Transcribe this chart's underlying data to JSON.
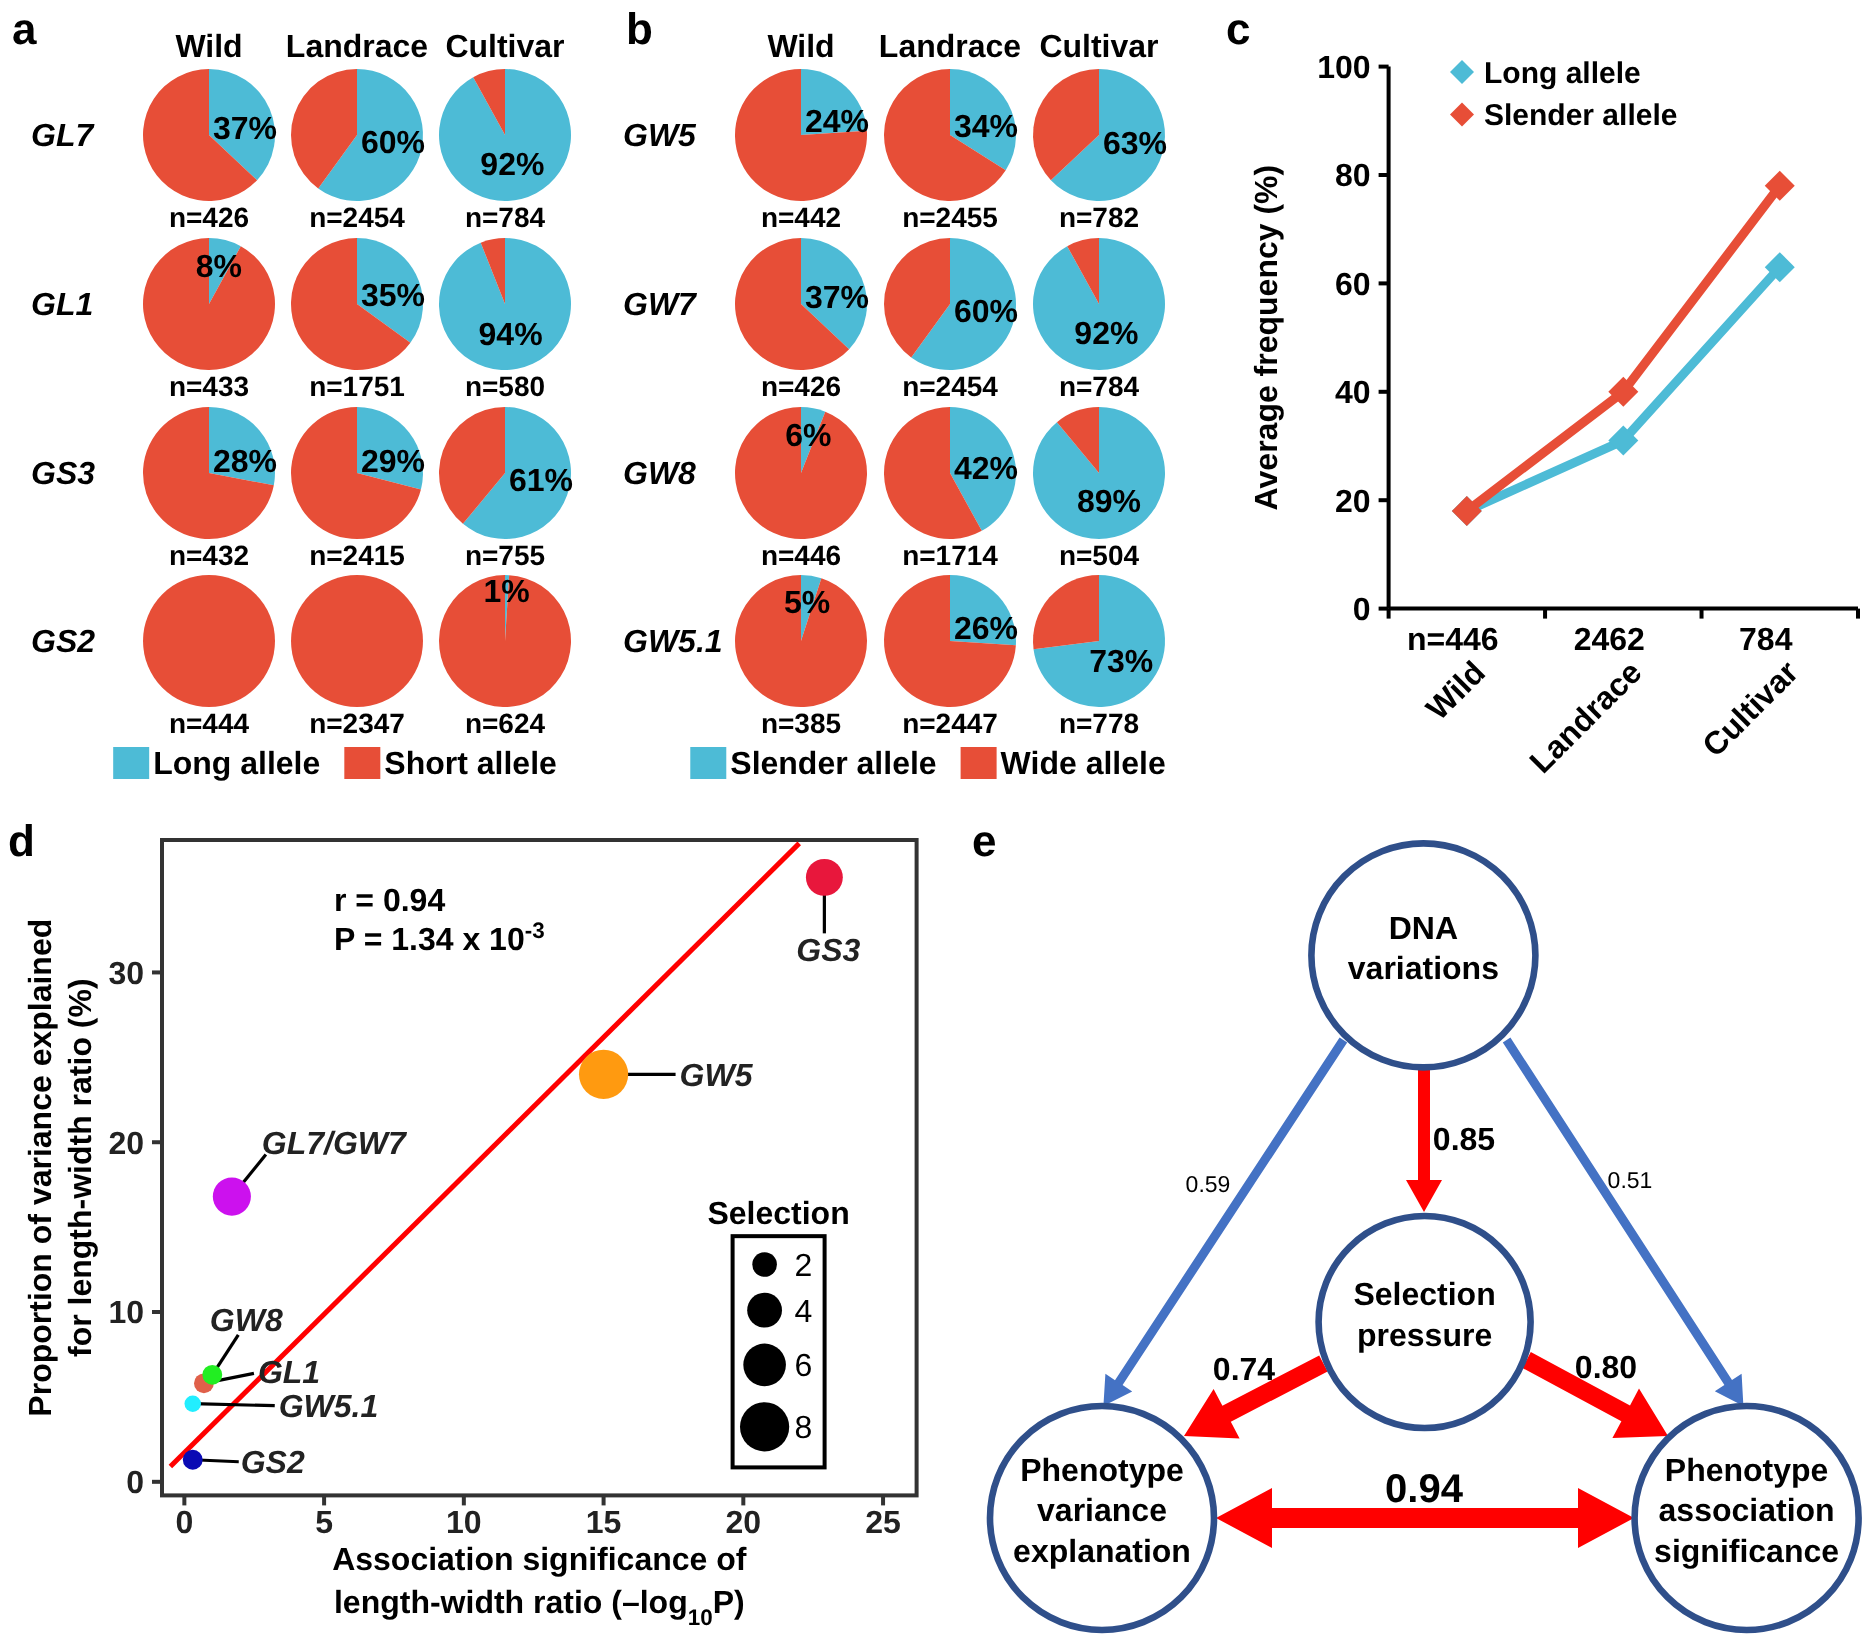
{
  "chart_data": [
    {
      "type": "pie",
      "title": "Wild",
      "ylabel": "GL7",
      "categories": [
        null,
        null
      ],
      "values": [
        37,
        63
      ],
      "colors": [
        "#4dbbd6",
        "#e74e37"
      ],
      "value_labels": [
        "37%",
        null
      ],
      "annotations": [
        "n=426",
        "a"
      ]
    },
    {
      "type": "pie",
      "title": "Landrace",
      "categories": [
        null,
        null
      ],
      "values": [
        60,
        40
      ],
      "colors": [
        "#4dbbd6",
        "#e74e37"
      ],
      "value_labels": [
        "60%",
        null
      ],
      "annotations": [
        "n=2454"
      ]
    },
    {
      "type": "pie",
      "title": "Cultivar",
      "categories": [
        null,
        null
      ],
      "values": [
        92,
        8
      ],
      "colors": [
        "#4dbbd6",
        "#e74e37"
      ],
      "value_labels": [
        "92%",
        null
      ],
      "annotations": [
        "n=784"
      ]
    },
    {
      "type": "pie",
      "ylabel": "GL1",
      "categories": [
        null,
        null
      ],
      "values": [
        8,
        92
      ],
      "colors": [
        "#4dbbd6",
        "#e74e37"
      ],
      "value_labels": [
        "8%",
        null
      ],
      "annotations": [
        "n=433"
      ]
    },
    {
      "type": "pie",
      "categories": [
        null,
        null
      ],
      "values": [
        35,
        65
      ],
      "colors": [
        "#4dbbd6",
        "#e74e37"
      ],
      "value_labels": [
        "35%",
        null
      ],
      "annotations": [
        "n=1751"
      ]
    },
    {
      "type": "pie",
      "categories": [
        null,
        null
      ],
      "values": [
        94,
        6
      ],
      "colors": [
        "#4dbbd6",
        "#e74e37"
      ],
      "value_labels": [
        "94%",
        null
      ],
      "annotations": [
        "n=580"
      ]
    },
    {
      "type": "pie",
      "ylabel": "GS3",
      "categories": [
        null,
        null
      ],
      "values": [
        28,
        72
      ],
      "colors": [
        "#4dbbd6",
        "#e74e37"
      ],
      "value_labels": [
        "28%",
        null
      ],
      "annotations": [
        "n=432"
      ]
    },
    {
      "type": "pie",
      "categories": [
        null,
        null
      ],
      "values": [
        29,
        71
      ],
      "colors": [
        "#4dbbd6",
        "#e74e37"
      ],
      "value_labels": [
        "29%",
        null
      ],
      "annotations": [
        "n=2415"
      ]
    },
    {
      "type": "pie",
      "categories": [
        null,
        null
      ],
      "values": [
        61,
        39
      ],
      "colors": [
        "#4dbbd6",
        "#e74e37"
      ],
      "value_labels": [
        "61%",
        null
      ],
      "annotations": [
        "n=755"
      ]
    },
    {
      "type": "pie",
      "ylabel": "GS2",
      "categories": [
        "Long allele",
        "Short allele"
      ],
      "values": [
        0,
        100
      ],
      "colors": [
        "#4dbbd6",
        "#e74e37"
      ],
      "annotations": [
        "n=444"
      ],
      "legend": "bottom"
    },
    {
      "type": "pie",
      "categories": [
        null,
        null
      ],
      "values": [
        0,
        100
      ],
      "colors": [
        null,
        "#e74e37"
      ],
      "annotations": [
        "n=2347"
      ]
    },
    {
      "type": "pie",
      "categories": [
        null,
        null
      ],
      "values": [
        1,
        99
      ],
      "colors": [
        "#4dbbd6",
        "#e74e37"
      ],
      "value_labels": [
        "1%",
        null
      ],
      "annotations": [
        "n=624"
      ]
    },
    {
      "type": "pie",
      "title": "Wild",
      "ylabel": "GW5",
      "categories": [
        null,
        null
      ],
      "values": [
        24,
        76
      ],
      "colors": [
        "#4dbbd6",
        "#e74e37"
      ],
      "value_labels": [
        "24%",
        null
      ],
      "annotations": [
        "n=442",
        "b"
      ]
    },
    {
      "type": "pie",
      "title": "Landrace",
      "categories": [
        null,
        null
      ],
      "values": [
        34,
        66
      ],
      "colors": [
        "#4dbbd6",
        "#e74e37"
      ],
      "value_labels": [
        "34%",
        null
      ],
      "annotations": [
        "n=2455"
      ]
    },
    {
      "type": "pie",
      "title": "Cultivar",
      "categories": [
        null,
        null
      ],
      "values": [
        63,
        37
      ],
      "colors": [
        "#4dbbd6",
        "#e74e37"
      ],
      "value_labels": [
        "63%",
        null
      ],
      "annotations": [
        "n=782"
      ]
    },
    {
      "type": "pie",
      "ylabel": "GW7",
      "categories": [
        null,
        null
      ],
      "values": [
        37,
        63
      ],
      "colors": [
        "#4dbbd6",
        "#e74e37"
      ],
      "value_labels": [
        "37%",
        null
      ],
      "annotations": [
        "n=426"
      ]
    },
    {
      "type": "pie",
      "categories": [
        null,
        null
      ],
      "values": [
        60,
        40
      ],
      "colors": [
        "#4dbbd6",
        "#e74e37"
      ],
      "value_labels": [
        "60%",
        null
      ],
      "annotations": [
        "n=2454"
      ]
    },
    {
      "type": "pie",
      "categories": [
        null,
        null
      ],
      "values": [
        92,
        8
      ],
      "colors": [
        "#4dbbd6",
        "#e74e37"
      ],
      "value_labels": [
        "92%",
        null
      ],
      "annotations": [
        "n=784"
      ]
    },
    {
      "type": "pie",
      "ylabel": "GW8",
      "categories": [
        null,
        null
      ],
      "values": [
        6,
        94
      ],
      "colors": [
        "#4dbbd6",
        "#e74e37"
      ],
      "value_labels": [
        "6%",
        null
      ],
      "annotations": [
        "n=446"
      ]
    },
    {
      "type": "pie",
      "categories": [
        null,
        null
      ],
      "values": [
        42,
        58
      ],
      "colors": [
        "#4dbbd6",
        "#e74e37"
      ],
      "value_labels": [
        "42%",
        null
      ],
      "annotations": [
        "n=1714"
      ]
    },
    {
      "type": "pie",
      "categories": [
        null,
        null
      ],
      "values": [
        89,
        11
      ],
      "colors": [
        "#4dbbd6",
        "#e74e37"
      ],
      "value_labels": [
        "89%",
        null
      ],
      "annotations": [
        "n=504"
      ]
    },
    {
      "type": "pie",
      "ylabel": "GW5.1",
      "categories": [
        "Slender allele",
        "Wide allele"
      ],
      "values": [
        5,
        95
      ],
      "colors": [
        "#4dbbd6",
        "#e74e37"
      ],
      "value_labels": [
        "5%",
        null
      ],
      "annotations": [
        "n=385"
      ],
      "legend": "bottom"
    },
    {
      "type": "pie",
      "categories": [
        null,
        null
      ],
      "values": [
        26,
        74
      ],
      "colors": [
        "#4dbbd6",
        "#e74e37"
      ],
      "value_labels": [
        "26%",
        null
      ],
      "annotations": [
        "n=2447"
      ]
    },
    {
      "type": "pie",
      "categories": [
        null,
        null
      ],
      "values": [
        73,
        27
      ],
      "colors": [
        "#4dbbd6",
        "#e74e37"
      ],
      "value_labels": [
        "73%",
        null
      ],
      "annotations": [
        "n=778"
      ]
    },
    {
      "type": "line",
      "categories": [
        "Wild",
        "Landrace",
        "Cultivar"
      ],
      "ylabel": "Average frequency (%)",
      "ylim": [
        0,
        100
      ],
      "yticks": [
        0,
        20,
        40,
        60,
        80,
        100
      ],
      "marker": "diamond",
      "legend": "top left",
      "series": [
        {
          "name": "Long allele",
          "color": "#4dbbd6",
          "values": [
            18,
            31,
            63
          ]
        },
        {
          "name": "Slender allele",
          "color": "#e74e37",
          "values": [
            18,
            40,
            78
          ]
        }
      ],
      "annotations": [
        "c",
        "n=446",
        "2462",
        "784"
      ]
    },
    {
      "type": "bubble",
      "xlabel": "Association significance of length-width ratio (–log$_{10}$P)",
      "ylabel": "Proportion of variance explained for length-width ratio (%)",
      "xlim": [
        -0.8,
        26.2
      ],
      "ylim": [
        -0.8,
        37.8
      ],
      "xticks": [
        0,
        5,
        10,
        15,
        20,
        25
      ],
      "yticks": [
        0,
        10,
        20,
        30
      ],
      "legend": "bottom right",
      "legend_title": "Selection",
      "size_legend": [
        2,
        4,
        6,
        8
      ],
      "series": [
        {
          "type": "line",
          "color": "#ff0000",
          "x": [
            -0.5,
            22
          ],
          "values": [
            0.9,
            37.6
          ]
        },
        {
          "name": "GS3",
          "color": "#e8173c",
          "x": [
            22.9
          ],
          "values": [
            35.6
          ],
          "sizes": [
            4.5
          ]
        },
        {
          "name": "GW5",
          "color": "#ff9a10",
          "x": [
            15
          ],
          "values": [
            24
          ],
          "sizes": [
            8
          ]
        },
        {
          "name": "GL7/GW7",
          "color": "#cc11ee",
          "x": [
            1.7
          ],
          "values": [
            16.8
          ],
          "sizes": [
            4.8
          ]
        },
        {
          "name": "GL1",
          "color": "#e0604a",
          "x": [
            0.7
          ],
          "values": [
            5.8
          ],
          "sizes": [
            1.3
          ]
        },
        {
          "name": "GW8",
          "color": "#22ee22",
          "x": [
            1
          ],
          "values": [
            6.3
          ],
          "sizes": [
            1.3
          ]
        },
        {
          "name": "GW5.1",
          "color": "#22eeff",
          "x": [
            0.3
          ],
          "values": [
            4.6
          ],
          "sizes": [
            0.9
          ]
        },
        {
          "name": "GS2",
          "color": "#0a0ab4",
          "x": [
            0.3
          ],
          "values": [
            1.3
          ],
          "sizes": [
            1.3
          ]
        }
      ],
      "annotations": [
        "d",
        "r = 0.94",
        "P = 1.34 x 10$^{-3}$"
      ]
    },
    {
      "type": "other",
      "categories": [
        "DNA variations",
        "Selection pressure",
        "Phenotype variance explanation",
        "Phenotype association significance"
      ],
      "annotations": [
        "e",
        "0.85",
        "0.59",
        "0.51",
        "0.74",
        "0.80",
        "0.94"
      ]
    }
  ]
}
